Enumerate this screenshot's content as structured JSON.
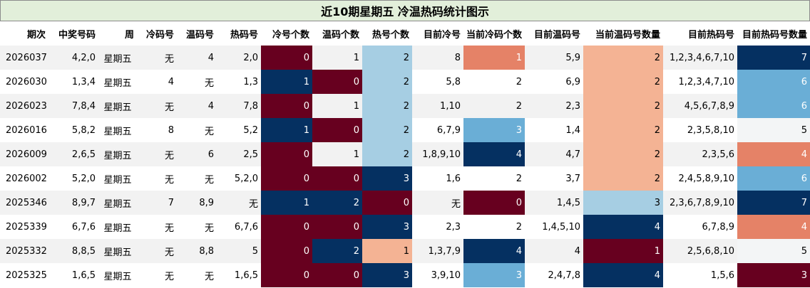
{
  "title": "近10期星期五 冷温热码统计图示",
  "headers": [
    "期次",
    "中奖号码",
    "周",
    "冷码号",
    "温码号",
    "热码号",
    "冷号个数",
    "温码个数",
    "热号个数",
    "目前冷号",
    "当前冷码个数",
    "目前温码号",
    "当前温码号数量",
    "目前热码号",
    "目前热码号数量"
  ],
  "colors": {
    "darkred": "#67001f",
    "navy": "#053061",
    "lightblue": "#a6cee3",
    "midblue": "#6aaed6",
    "salmon": "#e58267",
    "peach": "#f4b394",
    "pale": "#f3f5f6"
  },
  "rows": [
    {
      "cells": [
        "2026037",
        "4,2,0",
        "星期五",
        "无",
        "4",
        "2,0",
        "0",
        "1",
        "2",
        "8",
        "1",
        "5,9",
        "2",
        "1,2,3,4,6,7,10",
        "7"
      ],
      "fills": {
        "6": "darkred",
        "8": "lightblue",
        "10": "salmon",
        "12": "peach",
        "14": "navy"
      }
    },
    {
      "cells": [
        "2026030",
        "1,3,4",
        "星期五",
        "4",
        "无",
        "1,3",
        "1",
        "0",
        "2",
        "5,8",
        "2",
        "6,9",
        "2",
        "1,2,3,4,7,10",
        "6"
      ],
      "fills": {
        "6": "navy",
        "7": "darkred",
        "8": "lightblue",
        "12": "peach",
        "14": "midblue"
      }
    },
    {
      "cells": [
        "2026023",
        "7,8,4",
        "星期五",
        "无",
        "4",
        "7,8",
        "0",
        "1",
        "2",
        "1,10",
        "2",
        "2,3",
        "2",
        "4,5,6,7,8,9",
        "6"
      ],
      "fills": {
        "6": "darkred",
        "8": "lightblue",
        "12": "peach",
        "14": "midblue"
      }
    },
    {
      "cells": [
        "2026016",
        "5,8,2",
        "星期五",
        "8",
        "无",
        "5,2",
        "1",
        "0",
        "2",
        "6,7,9",
        "3",
        "1,4",
        "2",
        "2,3,5,8,10",
        "5"
      ],
      "fills": {
        "6": "navy",
        "7": "darkred",
        "8": "lightblue",
        "10": "midblue",
        "12": "peach",
        "14": "pale"
      }
    },
    {
      "cells": [
        "2026009",
        "2,6,5",
        "星期五",
        "无",
        "6",
        "2,5",
        "0",
        "1",
        "2",
        "1,8,9,10",
        "4",
        "4,7",
        "2",
        "2,3,5,6",
        "4"
      ],
      "fills": {
        "6": "darkred",
        "8": "lightblue",
        "10": "navy",
        "12": "peach",
        "14": "salmon"
      }
    },
    {
      "cells": [
        "2026002",
        "5,2,0",
        "星期五",
        "无",
        "无",
        "5,2,0",
        "0",
        "0",
        "3",
        "1,6",
        "2",
        "3,7",
        "2",
        "2,4,5,8,9,10",
        "6"
      ],
      "fills": {
        "6": "darkred",
        "7": "darkred",
        "8": "navy",
        "12": "peach",
        "14": "midblue"
      }
    },
    {
      "cells": [
        "2025346",
        "8,9,7",
        "星期五",
        "7",
        "8,9",
        "无",
        "1",
        "2",
        "0",
        "无",
        "0",
        "1,4,5",
        "3",
        "2,3,6,7,8,9,10",
        "7"
      ],
      "fills": {
        "6": "navy",
        "7": "navy",
        "8": "darkred",
        "10": "darkred",
        "12": "lightblue",
        "14": "navy"
      }
    },
    {
      "cells": [
        "2025339",
        "6,7,6",
        "星期五",
        "无",
        "无",
        "6,7,6",
        "0",
        "0",
        "3",
        "2,3",
        "2",
        "1,4,5,10",
        "4",
        "6,7,8,9",
        "4"
      ],
      "fills": {
        "6": "darkred",
        "7": "darkred",
        "8": "navy",
        "12": "navy",
        "14": "salmon"
      }
    },
    {
      "cells": [
        "2025332",
        "8,8,5",
        "星期五",
        "无",
        "8,8",
        "5",
        "0",
        "2",
        "1",
        "1,3,7,9",
        "4",
        "4",
        "1",
        "2,5,6,8,10",
        "5"
      ],
      "fills": {
        "6": "darkred",
        "7": "navy",
        "8": "peach",
        "10": "navy",
        "12": "darkred",
        "14": "pale"
      }
    },
    {
      "cells": [
        "2025325",
        "1,6,5",
        "星期五",
        "无",
        "无",
        "1,6,5",
        "0",
        "0",
        "3",
        "3,9,10",
        "3",
        "2,4,7,8",
        "4",
        "1,5,6",
        "3"
      ],
      "fills": {
        "6": "darkred",
        "7": "darkred",
        "8": "navy",
        "10": "midblue",
        "12": "navy",
        "14": "darkred"
      }
    }
  ]
}
